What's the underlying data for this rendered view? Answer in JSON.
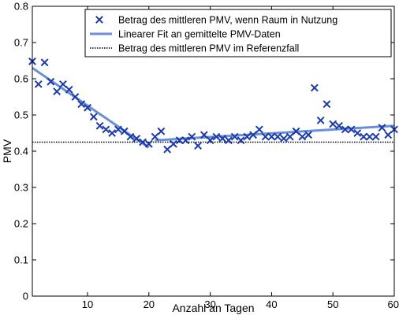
{
  "chart_data": {
    "type": "scatter",
    "title": "",
    "xlabel": "Anzahl an Tagen",
    "ylabel": "PMV",
    "xlim": [
      1,
      60
    ],
    "ylim": [
      0,
      0.8
    ],
    "x_ticks": [
      10,
      20,
      30,
      40,
      50,
      60
    ],
    "y_ticks": [
      0,
      0.1,
      0.2,
      0.3,
      0.4,
      0.5,
      0.6,
      0.7,
      0.8
    ],
    "x_tick_labels": [
      "10",
      "20",
      "30",
      "40",
      "50",
      "60"
    ],
    "y_tick_labels": [
      "0",
      "0.1",
      "0.2",
      "0.3",
      "0.4",
      "0.5",
      "0.6",
      "0.7",
      "0.8"
    ],
    "grid": false,
    "legend_position": "top-right",
    "colors": {
      "markers": "#1a3aa8",
      "fit": "#6b8fd6",
      "reference": "#000000"
    },
    "series": [
      {
        "name": "Betrag des mittleren PMV, wenn Raum in Nutzung",
        "kind": "scatter",
        "marker": "x",
        "x": [
          1,
          2,
          3,
          4,
          5,
          6,
          7,
          8,
          9,
          10,
          11,
          12,
          13,
          14,
          15,
          16,
          17,
          18,
          19,
          20,
          21,
          22,
          23,
          24,
          25,
          26,
          27,
          28,
          29,
          30,
          31,
          32,
          33,
          34,
          35,
          36,
          37,
          38,
          39,
          40,
          41,
          42,
          43,
          44,
          45,
          46,
          47,
          48,
          49,
          50,
          51,
          52,
          53,
          54,
          55,
          56,
          57,
          58,
          59,
          60
        ],
        "y": [
          0.648,
          0.585,
          0.645,
          0.592,
          0.565,
          0.585,
          0.57,
          0.55,
          0.53,
          0.52,
          0.495,
          0.47,
          0.46,
          0.45,
          0.46,
          0.455,
          0.44,
          0.435,
          0.425,
          0.42,
          0.44,
          0.455,
          0.405,
          0.42,
          0.43,
          0.43,
          0.44,
          0.415,
          0.445,
          0.43,
          0.44,
          0.435,
          0.43,
          0.44,
          0.43,
          0.44,
          0.445,
          0.46,
          0.44,
          0.44,
          0.44,
          0.435,
          0.44,
          0.455,
          0.44,
          0.445,
          0.575,
          0.485,
          0.53,
          0.475,
          0.47,
          0.46,
          0.46,
          0.45,
          0.44,
          0.44,
          0.44,
          0.465,
          0.445,
          0.46
        ]
      },
      {
        "name": "Linearer Fit an gemittelte PMV-Daten",
        "kind": "line",
        "segments": [
          {
            "x": [
              1,
              20
            ],
            "y": [
              0.63,
              0.41
            ]
          },
          {
            "x": [
              21,
              60
            ],
            "y": [
              0.43,
              0.47
            ]
          }
        ]
      },
      {
        "name": "Betrag des mittleren PMV im Referenzfall",
        "kind": "line",
        "style": "dotted",
        "x": [
          1,
          60
        ],
        "y": [
          0.425,
          0.425
        ]
      }
    ]
  }
}
